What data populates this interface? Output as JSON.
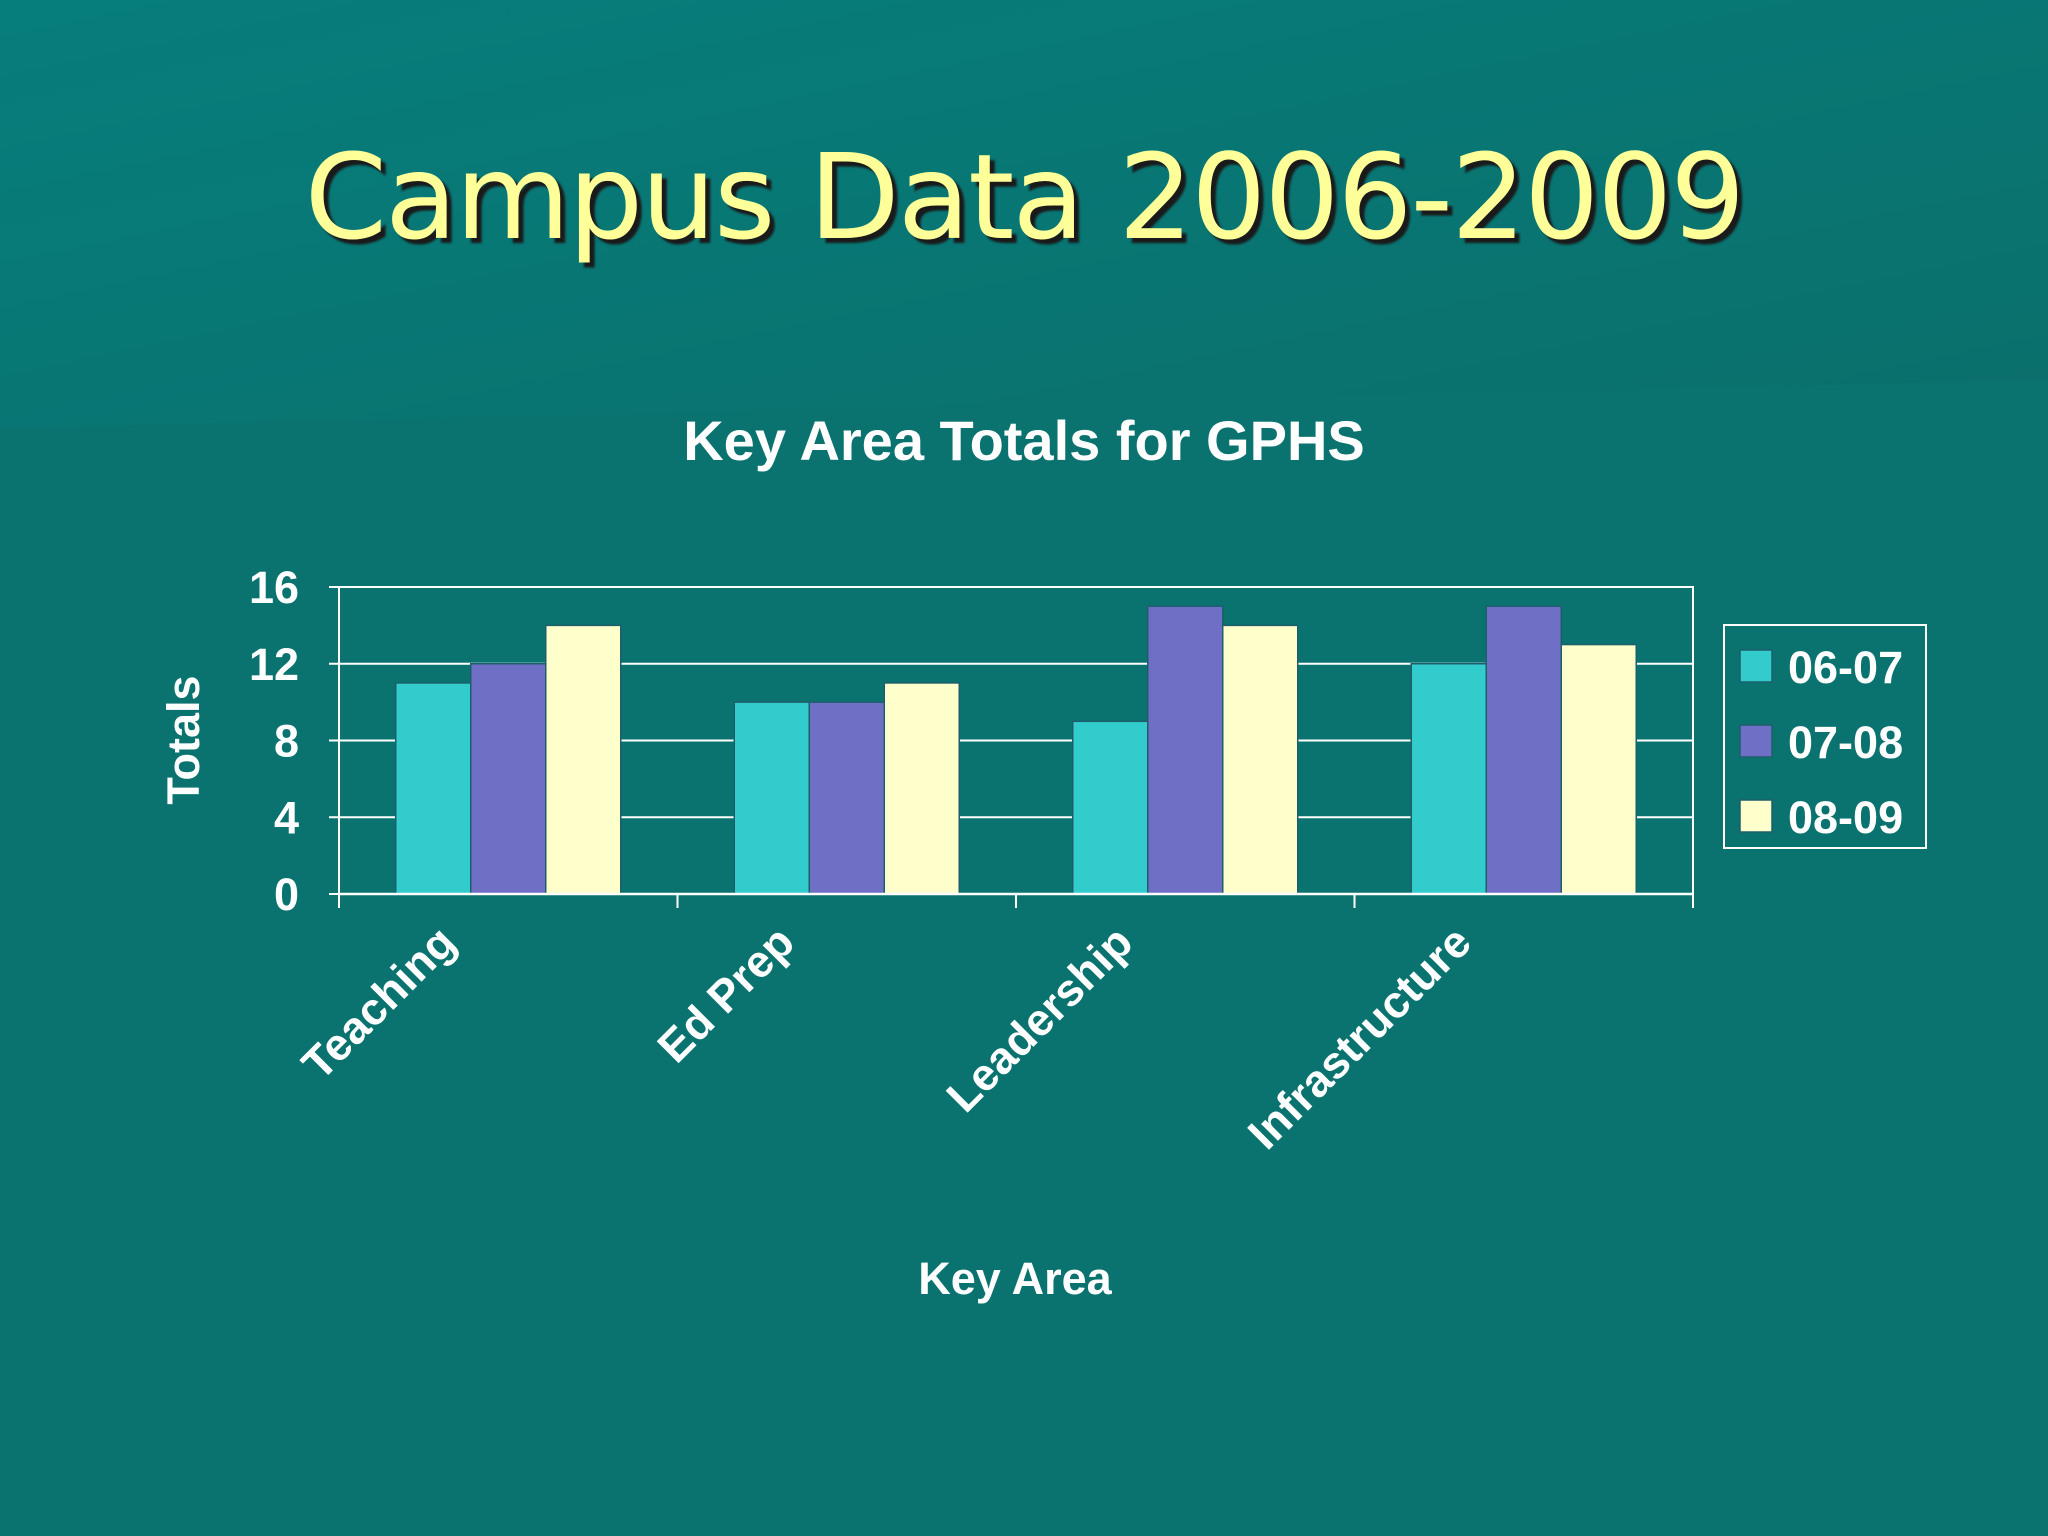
{
  "slide": {
    "title": "Campus Data 2006-2009"
  },
  "colors": {
    "background": "#0a7370",
    "title_text": "#ffff99",
    "series": [
      "#33cccc",
      "#6f6fc5",
      "#ffffcc"
    ]
  },
  "chart_data": {
    "type": "bar",
    "title": "Key Area Totals for GPHS",
    "xlabel": "Key Area",
    "ylabel": "Totals",
    "categories": [
      "Teaching",
      "Ed Prep",
      "Leadership",
      "Infrastructure"
    ],
    "series": [
      {
        "name": "06-07",
        "values": [
          11,
          10,
          9,
          12
        ]
      },
      {
        "name": "07-08",
        "values": [
          12,
          10,
          15,
          15
        ]
      },
      {
        "name": "08-09",
        "values": [
          14,
          11,
          14,
          13
        ]
      }
    ],
    "ylim": [
      0,
      16
    ],
    "yticks": [
      0,
      4,
      8,
      12,
      16
    ],
    "grid": true,
    "legend_position": "right"
  }
}
